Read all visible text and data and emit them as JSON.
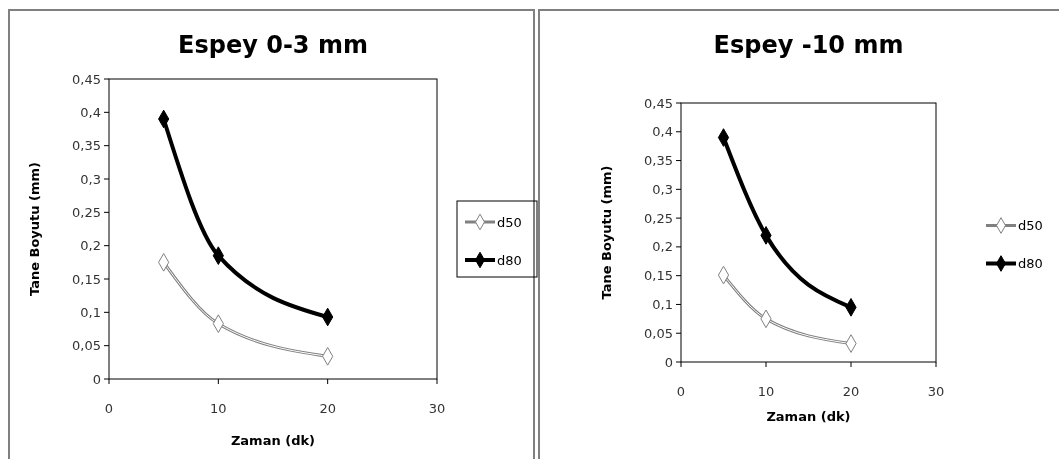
{
  "chart_data": [
    {
      "type": "line",
      "title": "Espey 0-3 mm",
      "xlabel": "Zaman (dk)",
      "ylabel": "Tane Boyutu (mm)",
      "x": [
        5,
        10,
        20
      ],
      "series": [
        {
          "name": "d50",
          "color": "#808080",
          "values": [
            0.175,
            0.083,
            0.034
          ]
        },
        {
          "name": "d80",
          "color": "#000000",
          "values": [
            0.39,
            0.185,
            0.093
          ]
        }
      ],
      "xlim": [
        0,
        30
      ],
      "xticks": [
        0,
        10,
        20,
        30
      ],
      "ylim": [
        0,
        0.45
      ],
      "yticks": [
        {
          "value": 0,
          "label": "0"
        },
        {
          "value": 0.05,
          "label": "0,05"
        },
        {
          "value": 0.1,
          "label": "0,1"
        },
        {
          "value": 0.15,
          "label": "0,15"
        },
        {
          "value": 0.2,
          "label": "0,2"
        },
        {
          "value": 0.25,
          "label": "0,25"
        },
        {
          "value": 0.3,
          "label": "0,3"
        },
        {
          "value": 0.35,
          "label": "0,35"
        },
        {
          "value": 0.4,
          "label": "0,4"
        },
        {
          "value": 0.45,
          "label": "0,45"
        }
      ],
      "marker": "diamond",
      "legend": "right"
    },
    {
      "type": "line",
      "title": "Espey -10 mm",
      "xlabel": "Zaman (dk)",
      "ylabel": "Tane Boyutu (mm)",
      "x": [
        5,
        10,
        20
      ],
      "series": [
        {
          "name": "d50",
          "color": "#808080",
          "values": [
            0.151,
            0.075,
            0.032
          ]
        },
        {
          "name": "d80",
          "color": "#000000",
          "values": [
            0.39,
            0.22,
            0.095
          ]
        }
      ],
      "xlim": [
        0,
        30
      ],
      "xticks": [
        0,
        10,
        20,
        30
      ],
      "ylim": [
        0,
        0.45
      ],
      "yticks": [
        {
          "value": 0,
          "label": "0"
        },
        {
          "value": 0.05,
          "label": "0,05"
        },
        {
          "value": 0.1,
          "label": "0,1"
        },
        {
          "value": 0.15,
          "label": "0,15"
        },
        {
          "value": 0.2,
          "label": "0,2"
        },
        {
          "value": 0.25,
          "label": "0,25"
        },
        {
          "value": 0.3,
          "label": "0,3"
        },
        {
          "value": 0.35,
          "label": "0,35"
        },
        {
          "value": 0.4,
          "label": "0,4"
        },
        {
          "value": 0.45,
          "label": "0,45"
        }
      ],
      "marker": "diamond",
      "legend": "right"
    }
  ]
}
